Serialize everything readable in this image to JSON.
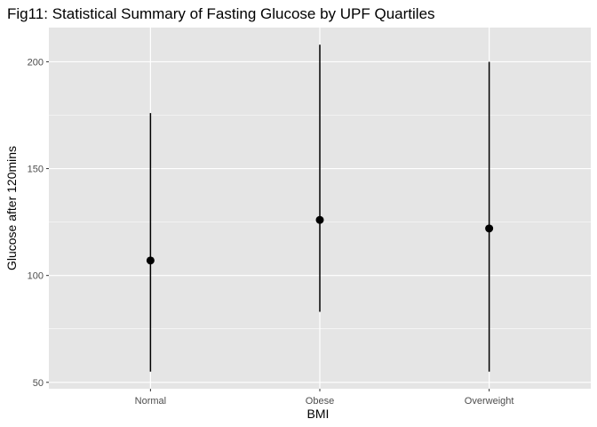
{
  "chart_data": {
    "type": "scatter",
    "title": "Fig11: Statistical Summary of Fasting Glucose by UPF Quartiles",
    "xlabel": "BMI",
    "ylabel": "Glucose after 120mins",
    "categories": [
      "Normal",
      "Obese",
      "Overweight"
    ],
    "points": [
      {
        "category": "Normal",
        "y": 107,
        "ymin": 55,
        "ymax": 176
      },
      {
        "category": "Obese",
        "y": 126,
        "ymin": 83,
        "ymax": 208
      },
      {
        "category": "Overweight",
        "y": 122,
        "ymin": 55,
        "ymax": 200
      }
    ],
    "yticks": [
      50,
      100,
      150,
      200
    ],
    "ylim": [
      47,
      216
    ],
    "grid": true,
    "legend": "none",
    "colors": {
      "panel": "#e5e5e5",
      "grid": "#ffffff",
      "point": "#000000",
      "range": "#000000"
    }
  }
}
